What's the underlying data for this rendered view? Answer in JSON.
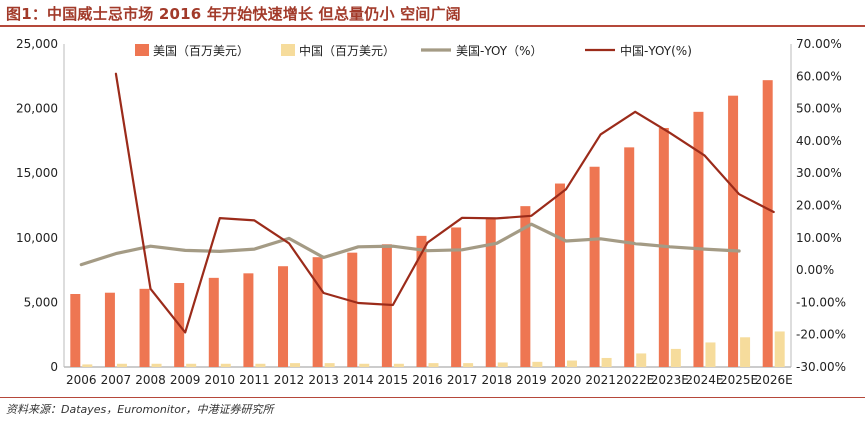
{
  "figure": {
    "title": "图1：中国威士忌市场 2016 年开始快速增长 但总量仍小 空间广阔",
    "source": "资料来源：Datayes，Euromonitor，中港证券研究所"
  },
  "colors": {
    "us_bar": "#ee7652",
    "cn_bar": "#f6dc9c",
    "us_yoy": "#a49b85",
    "cn_yoy": "#9b2b1a"
  },
  "chart_data": {
    "type": "bar",
    "categories": [
      "2006",
      "2007",
      "2008",
      "2009",
      "2010",
      "2011",
      "2012",
      "2013",
      "2014",
      "2015",
      "2016",
      "2017",
      "2018",
      "2019",
      "2020",
      "2021",
      "2022E",
      "2023E",
      "2024E",
      "2025E",
      "2026E"
    ],
    "left_axis": {
      "min": 0,
      "max": 25000,
      "ticks": [
        "0",
        "5,000",
        "10,000",
        "15,000",
        "20,000",
        "25,000"
      ]
    },
    "right_axis": {
      "min": -30,
      "max": 70,
      "ticks": [
        "-30.00%",
        "-20.00%",
        "-10.00%",
        "0.00%",
        "10.00%",
        "20.00%",
        "30.00%",
        "40.00%",
        "50.00%",
        "60.00%",
        "70.00%"
      ]
    },
    "series": [
      {
        "name": "美国（百万美元）",
        "kind": "bar",
        "axis": "left",
        "values": [
          5650,
          5750,
          6050,
          6500,
          6900,
          7250,
          7800,
          8500,
          8850,
          9500,
          10150,
          10800,
          11500,
          12450,
          14200,
          15500,
          17000,
          18500,
          19750,
          21000,
          22200
        ]
      },
      {
        "name": "中国（百万美元）",
        "kind": "bar",
        "axis": "left",
        "values": [
          200,
          250,
          250,
          250,
          250,
          250,
          300,
          300,
          250,
          250,
          300,
          300,
          350,
          400,
          500,
          700,
          1050,
          1400,
          1900,
          2300,
          2750
        ]
      },
      {
        "name": "美国-YOY（%）",
        "kind": "line",
        "axis": "right",
        "values": [
          1.7,
          5.1,
          7.4,
          6.1,
          5.8,
          6.5,
          9.8,
          3.9,
          7.2,
          7.4,
          6.0,
          6.3,
          8.3,
          14.2,
          9.0,
          9.7,
          8.2,
          7.2,
          6.5,
          5.9,
          null
        ]
      },
      {
        "name": "中国-YOY(%)",
        "kind": "line",
        "axis": "right",
        "values": [
          null,
          60.8,
          -5.8,
          -19.3,
          16.1,
          15.4,
          8.3,
          -7.1,
          -10.2,
          -10.8,
          8.5,
          16.2,
          16.0,
          16.8,
          25.0,
          42.0,
          49.0,
          42.5,
          35.5,
          23.5,
          18.0
        ]
      }
    ]
  }
}
